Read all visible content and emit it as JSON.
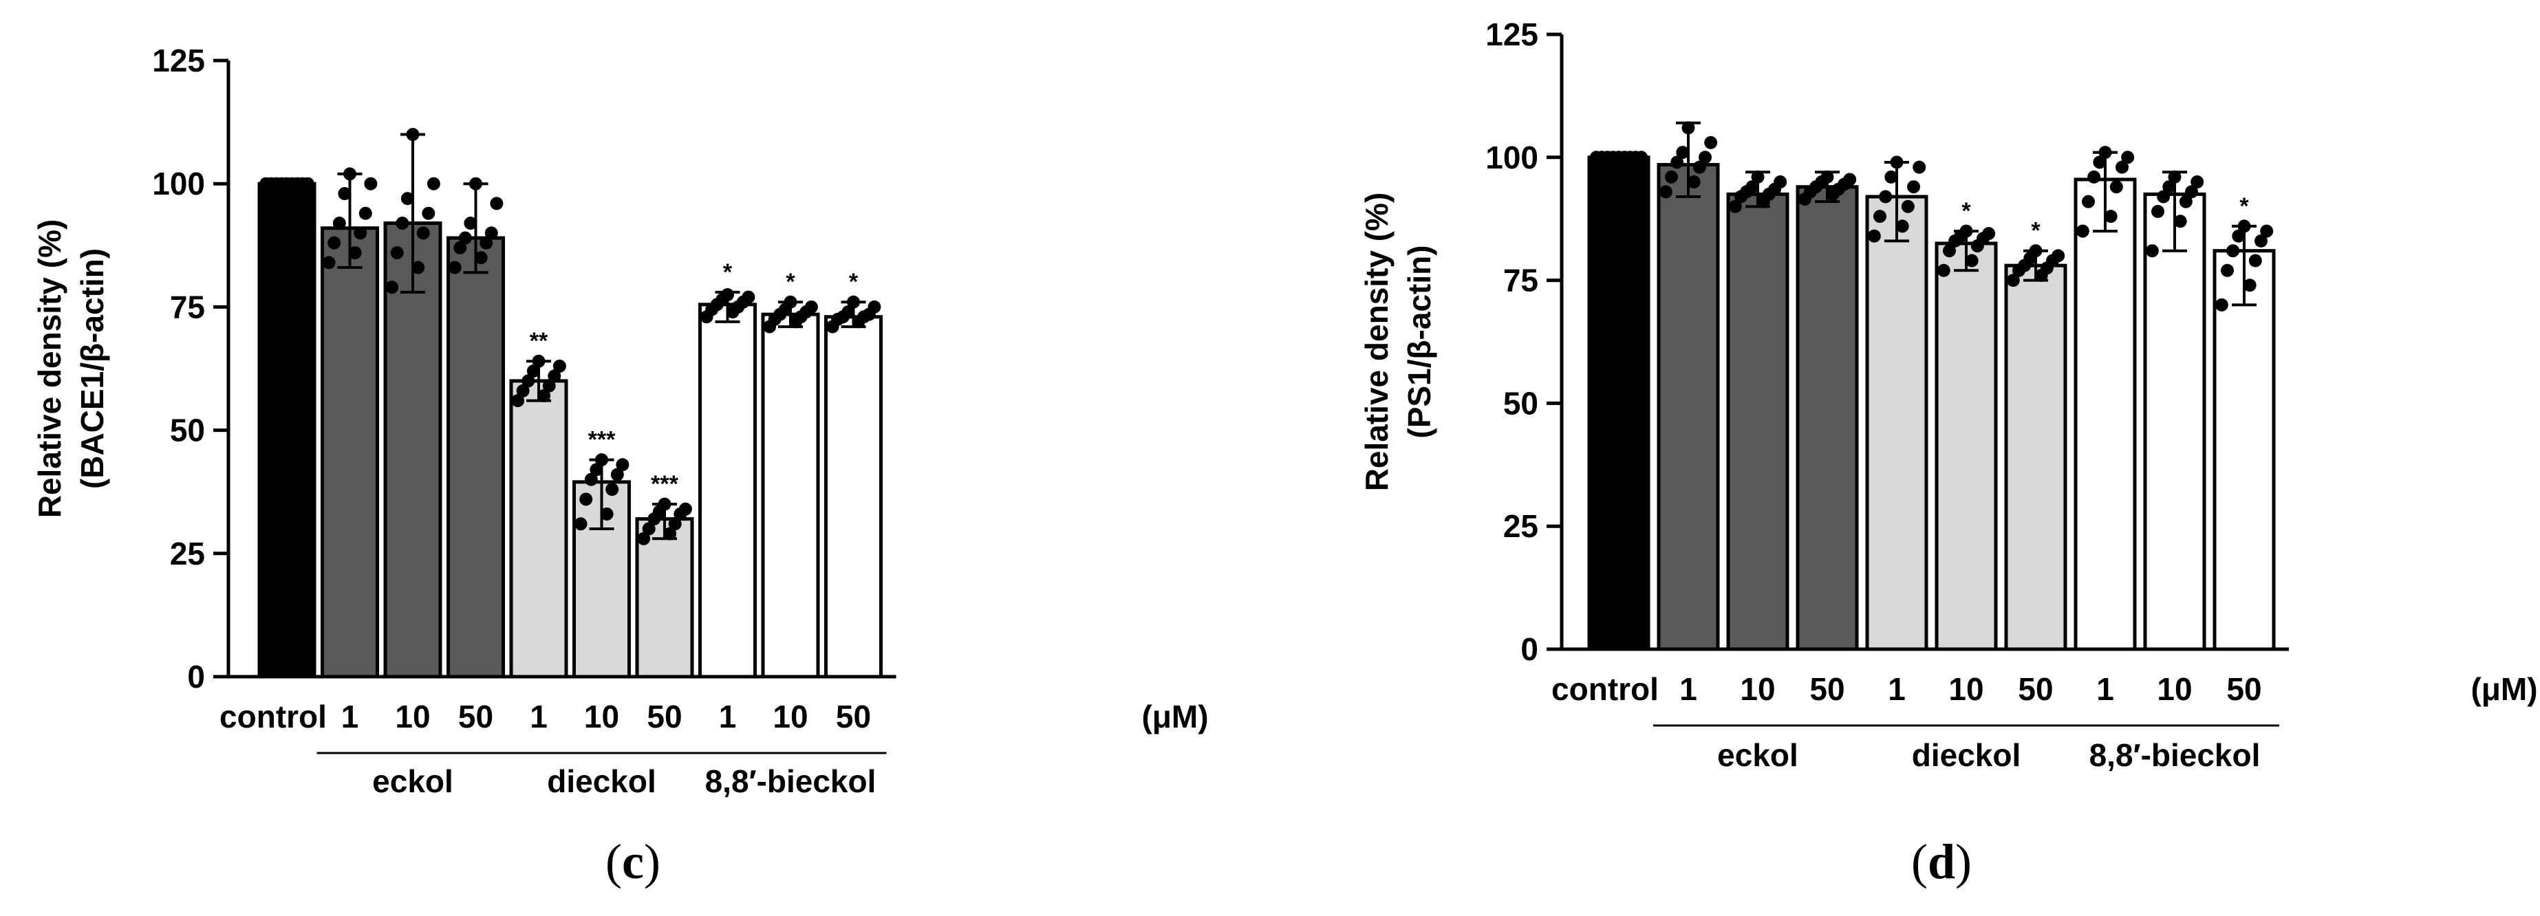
{
  "chart_data": [
    {
      "type": "bar",
      "panel_label": "c",
      "ylabel_lines": [
        "Relative density (%)",
        "(BACE1/β-actin)"
      ],
      "ylim": [
        0,
        125
      ],
      "yticks": [
        0,
        25,
        50,
        75,
        100,
        125
      ],
      "unit_label": "(μM)",
      "categories": [
        "control",
        "1",
        "10",
        "50",
        "1",
        "10",
        "50",
        "1",
        "10",
        "50"
      ],
      "values": [
        100,
        91,
        92,
        89,
        60,
        39.5,
        32,
        75.5,
        73.5,
        73
      ],
      "errors": [
        [
          100,
          100
        ],
        [
          83,
          102
        ],
        [
          78,
          110
        ],
        [
          82,
          100
        ],
        [
          56,
          64
        ],
        [
          30,
          44
        ],
        [
          28,
          35
        ],
        [
          72,
          78
        ],
        [
          71,
          76
        ],
        [
          71,
          76
        ]
      ],
      "fills": [
        "#000000",
        "#595959",
        "#595959",
        "#595959",
        "#d9d9d9",
        "#d9d9d9",
        "#d9d9d9",
        "#ffffff",
        "#ffffff",
        "#ffffff"
      ],
      "significance": [
        "",
        "",
        "",
        "",
        "**",
        "***",
        "***",
        "*",
        "*",
        "*"
      ],
      "points": [
        [
          100,
          100,
          100,
          100,
          100,
          100,
          100,
          100,
          100
        ],
        [
          84,
          86,
          88,
          90,
          92,
          94,
          98,
          100,
          102
        ],
        [
          79,
          83,
          86,
          90,
          92,
          94,
          97,
          100,
          110
        ],
        [
          83,
          85,
          87,
          88,
          89,
          90,
          92,
          96,
          100
        ],
        [
          56,
          57,
          58,
          59,
          60,
          61,
          62,
          63,
          64
        ],
        [
          31,
          33,
          36,
          38,
          40,
          41,
          42,
          43,
          44
        ],
        [
          28,
          29,
          30,
          31,
          32,
          33,
          33.5,
          34,
          35
        ],
        [
          73,
          74,
          74.5,
          75,
          75.5,
          76,
          76.5,
          77,
          77.5
        ],
        [
          71,
          72,
          72.5,
          73,
          73.5,
          74,
          74.5,
          75,
          76
        ],
        [
          71,
          72,
          72.5,
          73,
          73,
          73.5,
          74,
          75,
          76
        ]
      ],
      "groups": [
        {
          "label": "eckol",
          "from": 1,
          "to": 3
        },
        {
          "label": "dieckol",
          "from": 4,
          "to": 6
        },
        {
          "label": "8,8′-bieckol",
          "from": 7,
          "to": 9
        }
      ]
    },
    {
      "type": "bar",
      "panel_label": "d",
      "ylabel_lines": [
        "Relative density (%)",
        "(PS1/β-actin)"
      ],
      "ylim": [
        0,
        125
      ],
      "yticks": [
        0,
        25,
        50,
        75,
        100,
        125
      ],
      "unit_label": "(μM)",
      "categories": [
        "control",
        "1",
        "10",
        "50",
        "1",
        "10",
        "50",
        "1",
        "10",
        "50"
      ],
      "values": [
        100,
        98.5,
        92.5,
        94,
        92,
        82.5,
        78,
        95.5,
        92.5,
        81
      ],
      "errors": [
        [
          100,
          100
        ],
        [
          92,
          107
        ],
        [
          90,
          97
        ],
        [
          91,
          97
        ],
        [
          83,
          99
        ],
        [
          77,
          85
        ],
        [
          75,
          81
        ],
        [
          85,
          101
        ],
        [
          81,
          97
        ],
        [
          70,
          86
        ]
      ],
      "fills": [
        "#000000",
        "#595959",
        "#595959",
        "#595959",
        "#d9d9d9",
        "#d9d9d9",
        "#d9d9d9",
        "#ffffff",
        "#ffffff",
        "#ffffff"
      ],
      "significance": [
        "",
        "",
        "",
        "",
        "",
        "*",
        "*",
        "",
        "",
        "*"
      ],
      "points": [
        [
          100,
          100,
          100,
          100,
          100,
          100,
          100,
          100,
          100
        ],
        [
          93,
          95,
          96,
          98,
          99,
          100,
          101,
          103,
          106
        ],
        [
          90,
          91,
          92,
          92.5,
          93,
          93.5,
          94,
          95,
          96
        ],
        [
          91.5,
          92.5,
          93,
          93.5,
          94,
          94.5,
          95,
          95.5,
          96
        ],
        [
          84,
          86,
          88,
          90,
          92,
          94,
          96,
          98,
          99
        ],
        [
          77,
          79,
          81,
          82,
          83,
          83.5,
          84,
          84.5,
          85
        ],
        [
          75,
          76,
          77,
          77.5,
          78,
          79,
          79.5,
          80,
          81
        ],
        [
          85,
          88,
          91,
          94,
          96,
          98,
          99,
          100,
          101
        ],
        [
          81,
          87,
          89,
          91,
          92,
          93,
          94,
          95,
          96
        ],
        [
          70,
          74,
          77,
          79,
          81,
          83,
          84,
          85,
          86
        ]
      ],
      "groups": [
        {
          "label": "eckol",
          "from": 1,
          "to": 3
        },
        {
          "label": "dieckol",
          "from": 4,
          "to": 6
        },
        {
          "label": "8,8′-bieckol",
          "from": 7,
          "to": 9
        }
      ]
    }
  ]
}
